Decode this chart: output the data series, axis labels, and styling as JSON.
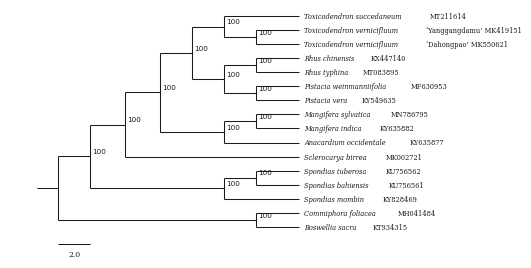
{
  "taxa": [
    "Toxicodendron succedaneum MT211614",
    "Toxicodendron vernicifluum ‘Yanggangdamu’ MK419151",
    "Toxicodendron vernicifluum ‘Dahongpao’ MK550621",
    "Rhus chinensis KX447140",
    "Rhus typhina MT083895",
    "Pistacia weinmanniifolia MF630953",
    "Pistacia vera KY549635",
    "Mangifera sylvatica MN786795",
    "Mangifera indica KY635882",
    "Anacardium occidentale KY635877",
    "Sclerocarya birrea MK002721",
    "Spondias tuberosa KU756562",
    "Spondias bahiensis KU756561",
    "Spondias mombin KY828469",
    "Commiphora foliacea MH041484",
    "Boswellia sacra KT934315"
  ],
  "italic_parts": [
    "Toxicodendron succedaneum",
    "Toxicodendron vernicifluum",
    "Toxicodendron vernicifluum",
    "Rhus chinensis",
    "Rhus typhina",
    "Pistacia weinmanniifolia",
    "Pistacia vera",
    "Mangifera sylvatica",
    "Mangifera indica",
    "Anacardium occidentale",
    "Sclerocarya birrea",
    "Spondias tuberosa",
    "Spondias bahiensis",
    "Spondias mombin",
    "Commiphora foliacea",
    "Boswellia sacra"
  ],
  "roman_parts": [
    "MT211614",
    "‘Yanggangdamu’ MK419151",
    "‘Dahongpao’ MK550621",
    "KX447140",
    "MT083895",
    "MF630953",
    "KY549635",
    "MN786795",
    "KY635882",
    "KY635877",
    "MK002721",
    "KU756562",
    "KU756561",
    "KY828469",
    "MH041484",
    "KT934315"
  ],
  "background_color": "#ffffff",
  "line_color": "#1a1a1a",
  "text_color": "#1a1a1a",
  "scale_bar_label": "2.0",
  "label_fontsize": 4.8,
  "bs_fontsize": 5.2
}
